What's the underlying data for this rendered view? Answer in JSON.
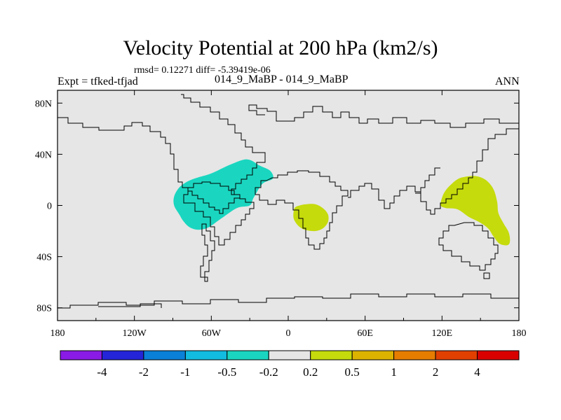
{
  "title": "Velocity Potential at 200 hPa (km2/s)",
  "stats_line": "rmsd= 0.12271  diff= -5.39419e-06",
  "left_label": "Expt = tfked-tfjad",
  "center_label": "014_9_MaBP - 014_9_MaBP",
  "right_label": "ANN",
  "map": {
    "projection": "cylindrical-equidistant",
    "lon_range": [
      -180,
      180
    ],
    "lat_range": [
      -90,
      90
    ],
    "background_color": "#e6e6e6",
    "lon_ticks": [
      {
        "value": -180,
        "label": "180"
      },
      {
        "value": -120,
        "label": "120W"
      },
      {
        "value": -60,
        "label": "60W"
      },
      {
        "value": 0,
        "label": "0"
      },
      {
        "value": 60,
        "label": "60E"
      },
      {
        "value": 120,
        "label": "120E"
      },
      {
        "value": 180,
        "label": "180"
      }
    ],
    "lat_ticks": [
      {
        "value": 80,
        "label": "80N"
      },
      {
        "value": 40,
        "label": "40N"
      },
      {
        "value": 0,
        "label": "0"
      },
      {
        "value": -40,
        "label": "40S"
      },
      {
        "value": -80,
        "label": "80S"
      }
    ],
    "anomaly_regions": [
      {
        "name": "tropical-atlantic-negative",
        "level": "-0.5 to -0.2",
        "color": "#1ad6c0",
        "points": [
          [
            -89,
            7
          ],
          [
            -85,
            14
          ],
          [
            -78,
            19
          ],
          [
            -70,
            22
          ],
          [
            -60,
            25
          ],
          [
            -45,
            32
          ],
          [
            -32,
            36
          ],
          [
            -22,
            31
          ],
          [
            -14,
            27
          ],
          [
            -12,
            21
          ],
          [
            -20,
            17
          ],
          [
            -27,
            6
          ],
          [
            -30,
            0
          ],
          [
            -40,
            -2
          ],
          [
            -52,
            -10
          ],
          [
            -62,
            -17
          ],
          [
            -70,
            -19
          ],
          [
            -77,
            -17
          ],
          [
            -82,
            -12
          ],
          [
            -85,
            -7
          ],
          [
            -89,
            0
          ]
        ]
      },
      {
        "name": "equatorial-africa-positive",
        "level": "0.2 to 0.5",
        "color": "#c5db0c",
        "points": [
          [
            4,
            -8
          ],
          [
            5,
            -2
          ],
          [
            9,
            0
          ],
          [
            14,
            1
          ],
          [
            21,
            1
          ],
          [
            27,
            -2
          ],
          [
            31,
            -7
          ],
          [
            31,
            -13
          ],
          [
            27,
            -18
          ],
          [
            21,
            -20
          ],
          [
            13,
            -19
          ],
          [
            8,
            -16
          ],
          [
            5,
            -12
          ]
        ]
      },
      {
        "name": "maritime-continent-positive",
        "level": "0.2 to 0.5",
        "color": "#c5db0c",
        "points": [
          [
            119,
            0
          ],
          [
            120,
            6
          ],
          [
            123,
            12
          ],
          [
            130,
            19
          ],
          [
            136,
            22
          ],
          [
            146,
            23
          ],
          [
            154,
            20
          ],
          [
            160,
            13
          ],
          [
            163,
            3
          ],
          [
            164,
            -6
          ],
          [
            168,
            -14
          ],
          [
            172,
            -21
          ],
          [
            173,
            -28
          ],
          [
            171,
            -31
          ],
          [
            165,
            -30
          ],
          [
            160,
            -24
          ],
          [
            156,
            -18
          ],
          [
            149,
            -13
          ],
          [
            141,
            -9
          ],
          [
            132,
            -3
          ],
          [
            123,
            -2
          ]
        ]
      }
    ]
  },
  "colorbar": {
    "colors": [
      "#8a1ae6",
      "#2424d8",
      "#0a80d8",
      "#12bce0",
      "#1ad6c0",
      "#e6e6e6",
      "#c5db0c",
      "#dcb400",
      "#e67d00",
      "#e14000",
      "#d90000"
    ],
    "labels": [
      "-4",
      "-2",
      "-1",
      "-0.5",
      "-0.2",
      "0.2",
      "0.5",
      "1",
      "2",
      "4"
    ]
  }
}
